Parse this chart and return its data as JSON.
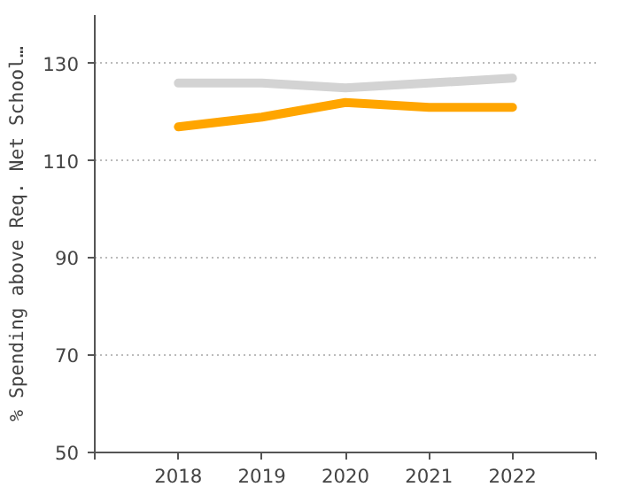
{
  "chart_data": {
    "type": "line",
    "ylabel": "% Spending above Req. Net School…",
    "x": [
      2018,
      2019,
      2020,
      2021,
      2022
    ],
    "series": [
      {
        "color": "#d3d3d3",
        "values": [
          126,
          126,
          125,
          126,
          127
        ]
      },
      {
        "color": "#ffa500",
        "values": [
          117,
          119,
          122,
          121,
          121
        ]
      }
    ],
    "xlim": [
      2017,
      2023
    ],
    "xticks": [
      {
        "value": 2017,
        "label": null
      },
      2018,
      2019,
      2020,
      2021,
      2022,
      {
        "value": 2023,
        "label": null
      }
    ],
    "ylim": [
      50,
      140
    ],
    "yticks": [
      50,
      70,
      90,
      110,
      130
    ],
    "grid": "y",
    "marker": "none",
    "line_style": "solid"
  }
}
